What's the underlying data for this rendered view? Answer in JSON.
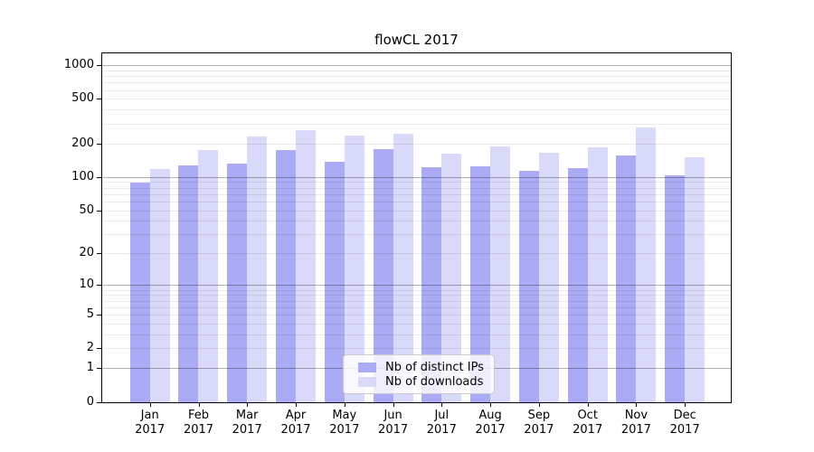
{
  "title": "flowCL 2017",
  "colors": {
    "ips_bar": "#aaaaf5",
    "downloads_bar": "#d9d9f9",
    "grid_major": "rgba(0,0,0,0.30)",
    "grid_minor": "rgba(0,0,0,0.08)",
    "axis": "#000000",
    "legend_border": "#cccccc"
  },
  "legend": {
    "items": [
      {
        "label": "Nb of distinct IPs",
        "color": "#aaaaf5"
      },
      {
        "label": "Nb of downloads",
        "color": "#d9d9f9"
      }
    ],
    "position": "lower center"
  },
  "chart_data": {
    "type": "bar",
    "title": "flowCL 2017",
    "scale": "symlog (y position proportional to ln(1+value))",
    "grid": true,
    "legend_position": "lower center",
    "categories": [
      "Jan 2017",
      "Feb 2017",
      "Mar 2017",
      "Apr 2017",
      "May 2017",
      "Jun 2017",
      "Jul 2017",
      "Aug 2017",
      "Sep 2017",
      "Oct 2017",
      "Nov 2017",
      "Dec 2017"
    ],
    "month_labels": [
      "Jan",
      "Feb",
      "Mar",
      "Apr",
      "May",
      "Jun",
      "Jul",
      "Aug",
      "Sep",
      "Oct",
      "Nov",
      "Dec"
    ],
    "year_label": "2017",
    "series": [
      {
        "name": "Nb of distinct IPs",
        "values": [
          89,
          126,
          132,
          174,
          138,
          177,
          122,
          124,
          113,
          121,
          156,
          103
        ]
      },
      {
        "name": "Nb of downloads",
        "values": [
          117,
          175,
          232,
          262,
          236,
          245,
          161,
          189,
          166,
          183,
          277,
          149
        ]
      }
    ],
    "y_ticks": [
      0,
      1,
      2,
      5,
      10,
      20,
      50,
      100,
      200,
      500,
      1000
    ],
    "ylim": [
      0,
      1270
    ],
    "xlabel": "",
    "ylabel": ""
  }
}
